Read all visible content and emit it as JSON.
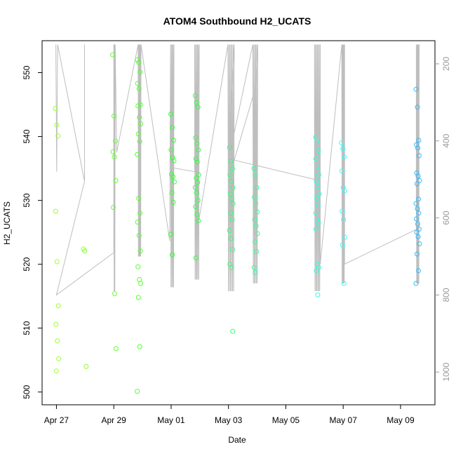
{
  "chart_data": {
    "type": "scatter",
    "title": "ATOM4 Southbound H2_UCATS",
    "xlabel": "Date",
    "ylabel": "H2_UCATS",
    "x_tick_labels": [
      "Apr 27",
      "Apr 29",
      "May 01",
      "May 03",
      "May 05",
      "May 07",
      "May 09"
    ],
    "x_tick_days": [
      0,
      2,
      4,
      6,
      8,
      10,
      12
    ],
    "xlim_days_from_apr27": [
      -0.5,
      13.2
    ],
    "ylim": [
      498,
      555
    ],
    "y_ticks": [
      500,
      510,
      520,
      530,
      540,
      550
    ],
    "right_axis": {
      "label_color": "#999999",
      "ticks": [
        200,
        400,
        600,
        800,
        1000
      ],
      "ylim_inverted": [
        1085,
        140
      ]
    },
    "grid": false,
    "legend": "none",
    "colors": {
      "axis": "#000000",
      "altitude_line": "#bebebe",
      "right_axis": "#999999"
    },
    "point_color_scale": "date (yellow-green to blue)",
    "groups": [
      {
        "day": 0.02,
        "color": "#9cff33",
        "values": [
          544.4,
          541.8,
          540.1,
          528.3,
          520.4,
          513.5,
          510.6,
          508.0,
          505.2,
          503.3
        ]
      },
      {
        "day": 1.0,
        "color": "#8cff33",
        "values": [
          522.4,
          522.1,
          504.0
        ]
      },
      {
        "day": 2.02,
        "color": "#66ff33",
        "values": [
          552.8,
          543.2,
          539.3,
          537.6,
          536.8,
          533.1,
          528.9,
          515.4,
          506.8
        ]
      },
      {
        "day": 2.88,
        "color": "#55ff33",
        "values": [
          552.0,
          551.6,
          550.1,
          548.3,
          547.5,
          545.0,
          544.8,
          543.0,
          542.0,
          540.4,
          539.2,
          537.2,
          530.3,
          528.0,
          526.6,
          524.5,
          522.1,
          519.6,
          517.6,
          517.0,
          514.8,
          507.1,
          500.1
        ]
      },
      {
        "day": 4.05,
        "color": "#33ff33",
        "values": [
          543.5,
          541.4,
          539.4,
          537.9,
          536.7,
          536.2,
          534.1,
          533.7,
          532.9,
          531.2,
          529.7,
          524.7,
          521.5
        ]
      },
      {
        "day": 4.9,
        "color": "#33ff44",
        "values": [
          546.4,
          545.3,
          544.6,
          539.8,
          538.9,
          537.9,
          536.5,
          536.0,
          534.0,
          533.5,
          532.8,
          532.0,
          531.2,
          530.0,
          529.0,
          527.8,
          526.8,
          521.0
        ]
      },
      {
        "day": 6.1,
        "color": "#33ff77",
        "values": [
          538.3,
          536.1,
          535.0,
          534.0,
          533.0,
          532.0,
          531.0,
          530.2,
          529.5,
          528.0,
          527.0,
          525.3,
          524.0,
          522.3,
          520.0,
          519.5,
          509.5
        ]
      },
      {
        "day": 6.95,
        "color": "#33ff99",
        "values": [
          535.0,
          533.8,
          532.0,
          530.5,
          529.5,
          528.2,
          527.0,
          526.0,
          524.8,
          523.5,
          522.0,
          519.5,
          518.7
        ]
      },
      {
        "day": 9.1,
        "color": "#33ffdd",
        "values": [
          539.9,
          539.2,
          537.8,
          536.5,
          535.2,
          534.0,
          533.0,
          532.2,
          531.0,
          530.3,
          529.2,
          528.0,
          527.0,
          526.5,
          525.5,
          520.0,
          519.5,
          519.0,
          515.2
        ]
      },
      {
        "day": 10.0,
        "color": "#33ffff",
        "values": [
          539.0,
          538.1,
          536.8,
          534.6,
          532.0,
          531.5,
          528.3,
          527.0,
          524.2,
          523.0,
          517.0
        ]
      },
      {
        "day": 12.6,
        "color": "#33bbff",
        "values": [
          547.4,
          544.6,
          539.4,
          538.7,
          538.2,
          537.0,
          534.3,
          533.8,
          533.1,
          532.6,
          530.2,
          529.5,
          528.7,
          528.0,
          527.1,
          526.3,
          525.5,
          525.0,
          524.3,
          523.2,
          521.6,
          519.0,
          517.0
        ]
      }
    ],
    "altitude_trace_note": "gray altitude profile on right axis"
  }
}
